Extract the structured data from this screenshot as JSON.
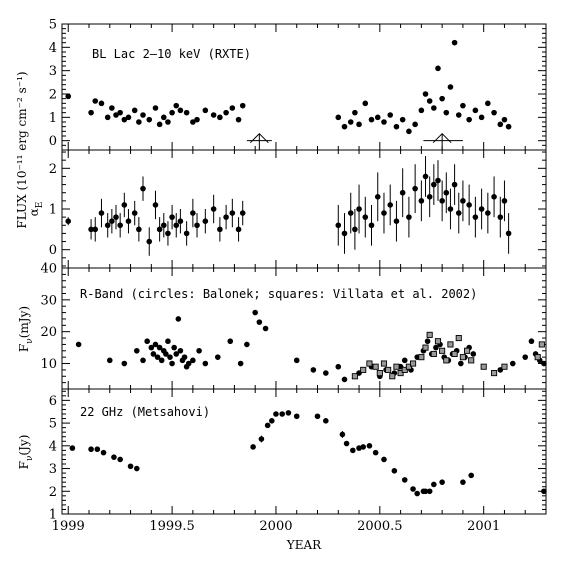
{
  "chart_data": {
    "type": "scatter",
    "xlabel": "YEAR",
    "xlim": [
      1998.97,
      2001.3
    ],
    "xticks": [
      1999,
      1999.5,
      2000,
      2000.5,
      2001
    ],
    "xtick_labels": [
      "1999",
      "1999.5",
      "2000",
      "2000.5",
      "2001"
    ],
    "shared_ylabel": "FLUX (10⁻¹¹ erg cm⁻² s⁻¹)",
    "panels": [
      {
        "id": "xray",
        "label": "BL Lac   2–10 keV (RXTE)",
        "ylim": [
          -0.4,
          5.0
        ],
        "yticks": [
          0,
          1,
          2,
          3,
          4,
          5
        ],
        "ylabel": "",
        "arrows": [
          {
            "x": 1999.92,
            "y_tip": 0.3,
            "y_base": -0.4,
            "range": [
              1999.86,
              1999.98
            ]
          },
          {
            "x": 2000.8,
            "y_tip": 0.3,
            "y_base": -0.4,
            "range": [
              2000.71,
              2000.9
            ]
          }
        ],
        "series": [
          {
            "marker": "circle",
            "x": [
              1999.0,
              1999.11,
              1999.13,
              1999.16,
              1999.19,
              1999.21,
              1999.23,
              1999.25,
              1999.27,
              1999.29,
              1999.32,
              1999.34,
              1999.36,
              1999.39,
              1999.42,
              1999.44,
              1999.46,
              1999.48,
              1999.5,
              1999.52,
              1999.54,
              1999.57,
              1999.6,
              1999.62,
              1999.66,
              1999.7,
              1999.73,
              1999.76,
              1999.79,
              1999.82,
              1999.84,
              2000.3,
              2000.33,
              2000.36,
              2000.38,
              2000.4,
              2000.43,
              2000.46,
              2000.49,
              2000.52,
              2000.55,
              2000.58,
              2000.61,
              2000.64,
              2000.67,
              2000.7,
              2000.72,
              2000.74,
              2000.76,
              2000.78,
              2000.8,
              2000.82,
              2000.84,
              2000.86,
              2000.88,
              2000.9,
              2000.93,
              2000.96,
              2000.99,
              2001.02,
              2001.05,
              2001.08,
              2001.1,
              2001.12
            ],
            "y": [
              1.9,
              1.2,
              1.7,
              1.6,
              1.0,
              1.4,
              1.1,
              1.2,
              0.9,
              1.0,
              1.3,
              0.8,
              1.1,
              0.9,
              1.4,
              0.7,
              1.0,
              0.8,
              1.2,
              1.5,
              1.3,
              1.2,
              0.8,
              0.9,
              1.3,
              1.1,
              1.0,
              1.2,
              1.4,
              0.9,
              1.5,
              1.0,
              0.6,
              0.8,
              1.2,
              0.7,
              1.6,
              0.9,
              1.0,
              0.8,
              1.1,
              0.6,
              0.9,
              0.4,
              0.7,
              1.3,
              2.0,
              1.7,
              1.4,
              3.1,
              1.8,
              1.2,
              2.3,
              4.2,
              1.1,
              1.5,
              0.9,
              1.3,
              1.0,
              1.6,
              1.2,
              0.7,
              0.9,
              0.6
            ]
          }
        ]
      },
      {
        "id": "alpha",
        "label": "",
        "ylim": [
          -0.45,
          2.45
        ],
        "yticks": [
          0,
          1,
          2
        ],
        "ylabel": "α_E",
        "ylabel_main": "α",
        "ylabel_sub": "E",
        "series": [
          {
            "marker": "circle",
            "x": [
              1999.0,
              1999.11,
              1999.13,
              1999.16,
              1999.19,
              1999.21,
              1999.23,
              1999.25,
              1999.27,
              1999.29,
              1999.32,
              1999.34,
              1999.36,
              1999.39,
              1999.42,
              1999.44,
              1999.46,
              1999.48,
              1999.5,
              1999.52,
              1999.54,
              1999.57,
              1999.6,
              1999.62,
              1999.66,
              1999.7,
              1999.73,
              1999.76,
              1999.79,
              1999.82,
              1999.84,
              2000.3,
              2000.33,
              2000.36,
              2000.38,
              2000.4,
              2000.43,
              2000.46,
              2000.49,
              2000.52,
              2000.55,
              2000.58,
              2000.61,
              2000.64,
              2000.67,
              2000.7,
              2000.72,
              2000.74,
              2000.76,
              2000.78,
              2000.8,
              2000.82,
              2000.84,
              2000.86,
              2000.88,
              2000.9,
              2000.93,
              2000.96,
              2000.99,
              2001.02,
              2001.05,
              2001.08,
              2001.1,
              2001.12
            ],
            "y": [
              0.7,
              0.5,
              0.5,
              0.9,
              0.6,
              0.7,
              0.8,
              0.6,
              1.1,
              0.7,
              0.9,
              0.5,
              1.5,
              0.2,
              1.1,
              0.5,
              0.6,
              0.4,
              0.8,
              0.6,
              0.7,
              0.4,
              0.9,
              0.6,
              0.7,
              1.0,
              0.5,
              0.8,
              0.9,
              0.5,
              0.9,
              0.6,
              0.4,
              0.9,
              0.5,
              1.0,
              0.8,
              0.6,
              1.3,
              0.9,
              1.1,
              0.7,
              1.4,
              0.8,
              1.5,
              1.2,
              1.8,
              1.3,
              1.6,
              1.7,
              1.2,
              1.4,
              1.0,
              1.6,
              0.9,
              1.2,
              1.1,
              0.8,
              1.0,
              0.9,
              1.3,
              0.8,
              1.2,
              0.4
            ],
            "yerr": [
              0.1,
              0.25,
              0.3,
              0.35,
              0.3,
              0.3,
              0.3,
              0.3,
              0.3,
              0.3,
              0.3,
              0.3,
              0.3,
              0.35,
              0.35,
              0.3,
              0.3,
              0.3,
              0.3,
              0.3,
              0.3,
              0.3,
              0.35,
              0.3,
              0.3,
              0.35,
              0.3,
              0.3,
              0.35,
              0.3,
              0.3,
              0.5,
              0.5,
              0.5,
              0.5,
              0.6,
              0.5,
              0.5,
              0.6,
              0.5,
              0.5,
              0.5,
              0.6,
              0.5,
              0.6,
              0.5,
              0.5,
              0.5,
              0.5,
              0.5,
              0.5,
              0.5,
              0.5,
              0.5,
              0.5,
              0.5,
              0.5,
              0.5,
              0.5,
              0.5,
              0.5,
              0.5,
              0.5,
              0.5
            ]
          }
        ]
      },
      {
        "id": "rband",
        "label": "R-Band (circles: Balonek; squares: Villata et al. 2002)",
        "ylim": [
          2,
          40
        ],
        "yticks": [
          10,
          20,
          30,
          40
        ],
        "ylabel": "Fν(mJy)",
        "ylabel_main": "F",
        "ylabel_sub": "ν",
        "ylabel_unit": "(mJy)",
        "series": [
          {
            "marker": "circle",
            "x": [
              1999.05,
              1999.2,
              1999.27,
              1999.33,
              1999.36,
              1999.38,
              1999.4,
              1999.41,
              1999.42,
              1999.43,
              1999.44,
              1999.45,
              1999.46,
              1999.47,
              1999.48,
              1999.49,
              1999.5,
              1999.51,
              1999.52,
              1999.53,
              1999.54,
              1999.55,
              1999.56,
              1999.57,
              1999.58,
              1999.6,
              1999.63,
              1999.66,
              1999.72,
              1999.78,
              1999.83,
              1999.86,
              1999.9,
              1999.92,
              1999.95,
              2000.1,
              2000.18,
              2000.24,
              2000.3,
              2000.33,
              2000.4,
              2000.46,
              2000.5,
              2000.53,
              2000.57,
              2000.6,
              2000.62,
              2000.65,
              2000.68,
              2000.71,
              2000.73,
              2000.75,
              2000.77,
              2000.79,
              2000.81,
              2000.83,
              2000.85,
              2000.87,
              2000.89,
              2000.91,
              2000.93,
              2000.95,
              2001.08,
              2001.14,
              2001.2,
              2001.23,
              2001.25,
              2001.27,
              2001.29
            ],
            "y": [
              16,
              11,
              10,
              14,
              11,
              17,
              15,
              13,
              16,
              12,
              15,
              11,
              14,
              13,
              17,
              12,
              10,
              15,
              13,
              24,
              14,
              11,
              12,
              9,
              10,
              11,
              14,
              10,
              12,
              17,
              10,
              16,
              26,
              23,
              21,
              11,
              8,
              7,
              9,
              5,
              7,
              9,
              6,
              8,
              7,
              9,
              11,
              8,
              12,
              14,
              17,
              13,
              15,
              16,
              12,
              11,
              13,
              14,
              10,
              12,
              15,
              13,
              8,
              10,
              12,
              17,
              13,
              11,
              10
            ]
          },
          {
            "marker": "square",
            "x": [
              2000.38,
              2000.42,
              2000.45,
              2000.48,
              2000.5,
              2000.52,
              2000.54,
              2000.56,
              2000.58,
              2000.6,
              2000.62,
              2000.64,
              2000.66,
              2000.7,
              2000.72,
              2000.74,
              2000.76,
              2000.78,
              2000.8,
              2000.82,
              2000.84,
              2000.86,
              2000.88,
              2000.9,
              2000.92,
              2000.94,
              2001.0,
              2001.05,
              2001.1,
              2001.26,
              2001.28
            ],
            "y": [
              6,
              8,
              10,
              9,
              7,
              10,
              8,
              6,
              9,
              7,
              8,
              9,
              10,
              12,
              15,
              19,
              13,
              17,
              14,
              11,
              16,
              13,
              18,
              12,
              14,
              11,
              9,
              7,
              9,
              12,
              16
            ]
          }
        ]
      },
      {
        "id": "radio",
        "label": "22 GHz (Metsahovi)",
        "ylim": [
          1,
          6.5
        ],
        "yticks": [
          1,
          2,
          3,
          4,
          5,
          6
        ],
        "ylabel": "Fν(Jy)",
        "ylabel_main": "F",
        "ylabel_sub": "ν",
        "ylabel_unit": "(Jy)",
        "series": [
          {
            "marker": "circle",
            "x": [
              1999.02,
              1999.11,
              1999.14,
              1999.17,
              1999.22,
              1999.25,
              1999.3,
              1999.33,
              1999.89,
              1999.93,
              1999.96,
              1999.98,
              2000.0,
              2000.03,
              2000.06,
              2000.1,
              2000.2,
              2000.24,
              2000.32,
              2000.34,
              2000.37,
              2000.4,
              2000.42,
              2000.45,
              2000.48,
              2000.52,
              2000.57,
              2000.62,
              2000.66,
              2000.68,
              2000.71,
              2000.72,
              2000.74,
              2000.76,
              2000.8,
              2000.9,
              2000.94,
              2001.29
            ],
            "y": [
              3.9,
              3.85,
              3.85,
              3.7,
              3.5,
              3.4,
              3.1,
              3.0,
              3.95,
              4.3,
              4.9,
              5.1,
              5.4,
              5.4,
              5.45,
              5.3,
              5.3,
              5.1,
              4.5,
              4.1,
              3.8,
              3.9,
              3.95,
              4.0,
              3.7,
              3.4,
              2.9,
              2.5,
              2.1,
              1.9,
              2.0,
              2.0,
              2.0,
              2.3,
              2.4,
              2.4,
              2.7,
              2.0
            ],
            "yerr": [
              0.05,
              0.05,
              0.05,
              0.05,
              0.05,
              0.05,
              0.05,
              0.05,
              0.05,
              0.15,
              0.1,
              0.1,
              0.1,
              0.1,
              0.1,
              0.1,
              0.1,
              0.1,
              0.15,
              0.1,
              0.1,
              0.1,
              0.1,
              0.1,
              0.1,
              0.1,
              0.1,
              0.1,
              0.1,
              0.1,
              0.1,
              0.1,
              0.1,
              0.1,
              0.1,
              0.1,
              0.1,
              0.05
            ]
          }
        ]
      }
    ]
  }
}
